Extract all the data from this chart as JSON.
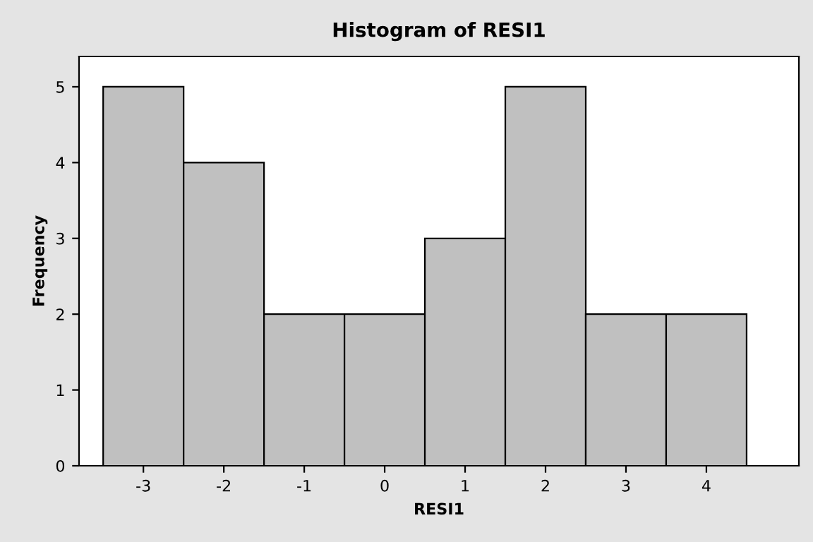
{
  "chart_data": {
    "type": "histogram",
    "title": "Histogram of RESI1",
    "xlabel": "RESI1",
    "ylabel": "Frequency",
    "bins": [
      -3.5,
      -2.5,
      -1.5,
      -0.5,
      0.5,
      1.5,
      2.5,
      3.5,
      4.5
    ],
    "values": [
      5,
      4,
      2,
      2,
      3,
      5,
      2,
      2
    ],
    "color": "#c0c0c0",
    "xlim": [
      -3.8,
      5.15
    ],
    "xticks": [
      -3,
      -2,
      -1,
      0,
      1,
      2,
      3,
      4
    ],
    "ylim": [
      0,
      5.4
    ],
    "yticks": [
      0,
      1,
      2,
      3,
      4,
      5
    ],
    "grid": false
  }
}
